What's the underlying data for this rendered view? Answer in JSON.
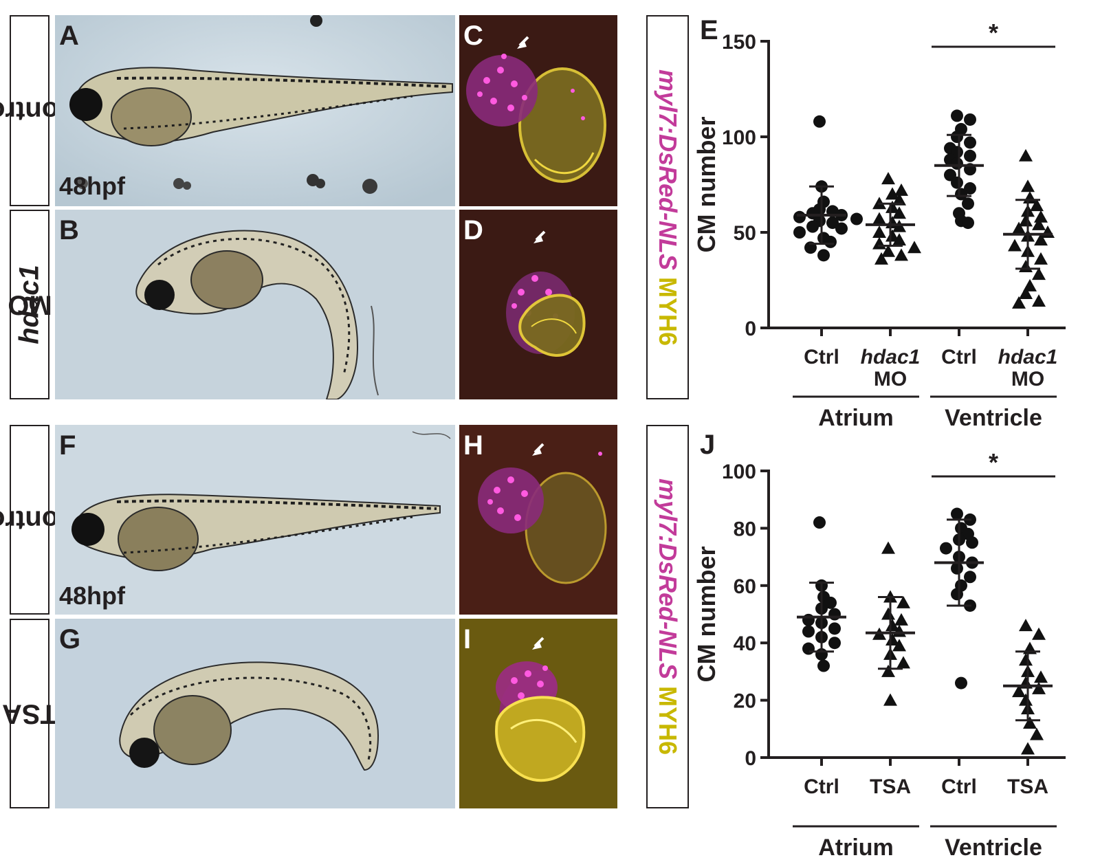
{
  "rows": [
    {
      "label_parts": [
        {
          "text": "Control",
          "italic": false
        }
      ]
    },
    {
      "label_parts": [
        {
          "text": "hdac1",
          "italic": true
        },
        {
          "text": " MO",
          "italic": false
        }
      ]
    },
    {
      "label_parts": [
        {
          "text": "Control",
          "italic": false
        }
      ]
    },
    {
      "label_parts": [
        {
          "text": "TSA",
          "italic": false
        }
      ]
    }
  ],
  "panels": {
    "A": "A",
    "B": "B",
    "C": "C",
    "D": "D",
    "E": "E",
    "F": "F",
    "G": "G",
    "H": "H",
    "I": "I",
    "J": "J"
  },
  "stage_label_top": "48hpf",
  "stage_label_bottom": "48hpf",
  "stain": {
    "reporter": "myl7:DsRed-NLS",
    "antibody": " MYH6",
    "reporter_color": "#c23b9a",
    "antibody_color": "#c8b800"
  },
  "chart_data": [
    {
      "type": "scatter",
      "panel": "E",
      "ylabel": "CM number",
      "ylim": [
        0,
        150
      ],
      "yticks": [
        0,
        50,
        100,
        150
      ],
      "categories": [
        "Ctrl",
        "hdac1 MO",
        "Ctrl",
        "hdac1 MO"
      ],
      "category_labels": [
        {
          "line1": "Ctrl",
          "line2": "",
          "italic": false
        },
        {
          "line1": "hdac1",
          "line2": "MO",
          "italic": true
        },
        {
          "line1": "Ctrl",
          "line2": "",
          "italic": false
        },
        {
          "line1": "hdac1",
          "line2": "MO",
          "italic": true
        }
      ],
      "groups": [
        {
          "label": "Atrium",
          "categories": [
            0,
            1
          ]
        },
        {
          "label": "Ventricle",
          "categories": [
            2,
            3
          ]
        }
      ],
      "series": [
        {
          "marker": "circle",
          "mean": 59,
          "sd_low": 44,
          "sd_high": 74,
          "values": [
            108,
            74,
            66,
            62,
            61,
            60,
            59,
            58,
            57,
            56,
            55,
            53,
            52,
            50,
            47,
            45,
            42,
            38
          ]
        },
        {
          "marker": "triangle",
          "mean": 54,
          "sd_low": 43,
          "sd_high": 65,
          "values": [
            78,
            72,
            70,
            67,
            65,
            63,
            60,
            57,
            55,
            53,
            50,
            48,
            46,
            44,
            42,
            40,
            38,
            36
          ]
        },
        {
          "marker": "circle",
          "mean": 85,
          "sd_low": 69,
          "sd_high": 101,
          "values": [
            111,
            109,
            104,
            100,
            97,
            94,
            92,
            90,
            88,
            86,
            83,
            80,
            76,
            73,
            70,
            65,
            60,
            56,
            55
          ]
        },
        {
          "marker": "triangle",
          "mean": 49,
          "sd_low": 31,
          "sd_high": 67,
          "values": [
            90,
            74,
            68,
            64,
            61,
            58,
            56,
            54,
            52,
            50,
            48,
            46,
            43,
            40,
            36,
            32,
            28,
            22,
            18,
            14,
            13
          ]
        }
      ],
      "significance": {
        "from": 2,
        "to": 3,
        "label": "*"
      }
    },
    {
      "type": "scatter",
      "panel": "J",
      "ylabel": "CM number",
      "ylim": [
        0,
        100
      ],
      "yticks": [
        0,
        20,
        40,
        60,
        80,
        100
      ],
      "categories": [
        "Ctrl",
        "TSA",
        "Ctrl",
        "TSA"
      ],
      "category_labels": [
        {
          "line1": "Ctrl",
          "line2": "",
          "italic": false
        },
        {
          "line1": "TSA",
          "line2": "",
          "italic": false
        },
        {
          "line1": "Ctrl",
          "line2": "",
          "italic": false
        },
        {
          "line1": "TSA",
          "line2": "",
          "italic": false
        }
      ],
      "groups": [
        {
          "label": "Atrium",
          "categories": [
            0,
            1
          ]
        },
        {
          "label": "Ventricle",
          "categories": [
            2,
            3
          ]
        }
      ],
      "series": [
        {
          "marker": "circle",
          "mean": 49,
          "sd_low": 37,
          "sd_high": 61,
          "values": [
            82,
            60,
            56,
            54,
            52,
            50,
            48,
            47,
            45,
            44,
            42,
            40,
            38,
            36,
            32
          ]
        },
        {
          "marker": "triangle",
          "mean": 43.5,
          "sd_low": 31,
          "sd_high": 56,
          "values": [
            73,
            56,
            54,
            50,
            48,
            46,
            44,
            43,
            41,
            39,
            36,
            33,
            30,
            20
          ]
        },
        {
          "marker": "circle",
          "mean": 68,
          "sd_low": 53,
          "sd_high": 83,
          "values": [
            85,
            83,
            80,
            78,
            76,
            75,
            73,
            70,
            68,
            66,
            63,
            60,
            57,
            53,
            26
          ]
        },
        {
          "marker": "triangle",
          "mean": 25,
          "sd_low": 13,
          "sd_high": 37,
          "values": [
            46,
            43,
            38,
            34,
            30,
            28,
            26,
            24,
            23,
            20,
            17,
            12,
            8,
            3
          ]
        }
      ],
      "significance": {
        "from": 2,
        "to": 3,
        "label": "*"
      }
    }
  ]
}
